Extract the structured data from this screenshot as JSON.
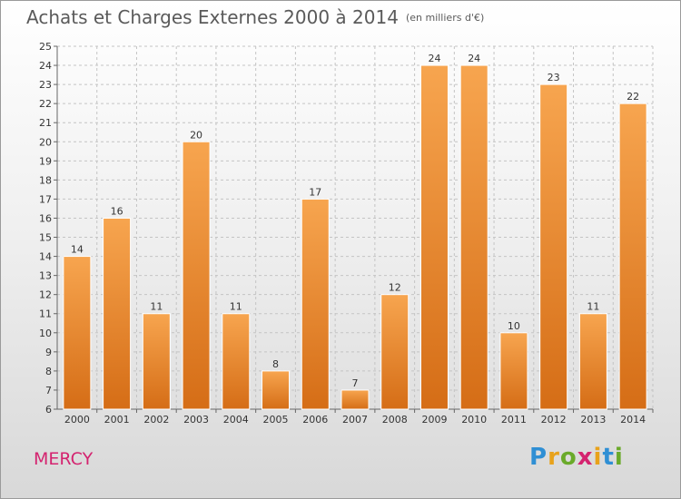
{
  "header": {
    "title": "Achats et Charges Externes 2000 à 2014",
    "unit": "(en milliers d'€)"
  },
  "footer": {
    "place": "MERCY",
    "logo": "Proxiti"
  },
  "colors": {
    "bar_light": "#f7a54f",
    "bar_dark": "#d56d16",
    "place": "#d4236f"
  },
  "chart_data": {
    "type": "bar",
    "title": "Achats et Charges Externes 2000 à 2014",
    "subtitle": "(en milliers d'€)",
    "categories": [
      "2000",
      "2001",
      "2002",
      "2003",
      "2004",
      "2005",
      "2006",
      "2007",
      "2008",
      "2009",
      "2010",
      "2011",
      "2012",
      "2013",
      "2014"
    ],
    "values": [
      14,
      16,
      11,
      20,
      11,
      8,
      17,
      7,
      12,
      24,
      24,
      10,
      23,
      11,
      22
    ],
    "ylim": [
      6,
      25
    ],
    "yticks": [
      6,
      7,
      8,
      9,
      10,
      11,
      12,
      13,
      14,
      15,
      16,
      17,
      18,
      19,
      20,
      21,
      22,
      23,
      24,
      25
    ],
    "grid": true,
    "data_labels": true
  }
}
